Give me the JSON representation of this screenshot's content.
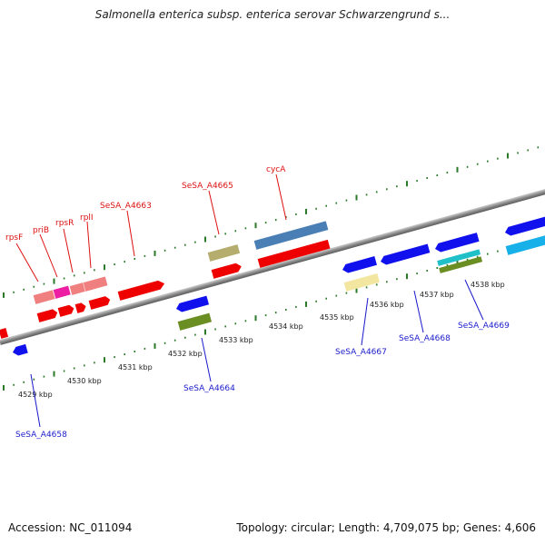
{
  "title": "Salmonella enterica subsp. enterica serovar Schwarzengrund s...",
  "footer": {
    "accession": "Accession: NC_011094",
    "summary": "Topology: circular; Length: 4,709,075 bp; Genes: 4,606"
  },
  "colors": {
    "backbone": "#8a8a8a",
    "tick": "#2a7a2a",
    "forward_label": "#dd1111",
    "reverse_label": "#1a1acc"
  },
  "kbp_labels": [
    "4529 kbp",
    "4530 kbp",
    "4531 kbp",
    "4532 kbp",
    "4533 kbp",
    "4534 kbp",
    "4535 kbp",
    "4536 kbp",
    "4537 kbp",
    "4538 kbp"
  ],
  "forward_genes": [
    "rpsF",
    "priB",
    "rpsR",
    "rplI",
    "SeSA_A4663",
    "SeSA_A4665",
    "cycA"
  ],
  "reverse_genes": [
    "SeSA_A4658",
    "SeSA_A4664",
    "SeSA_A4667",
    "SeSA_A4668",
    "SeSA_A4669"
  ]
}
